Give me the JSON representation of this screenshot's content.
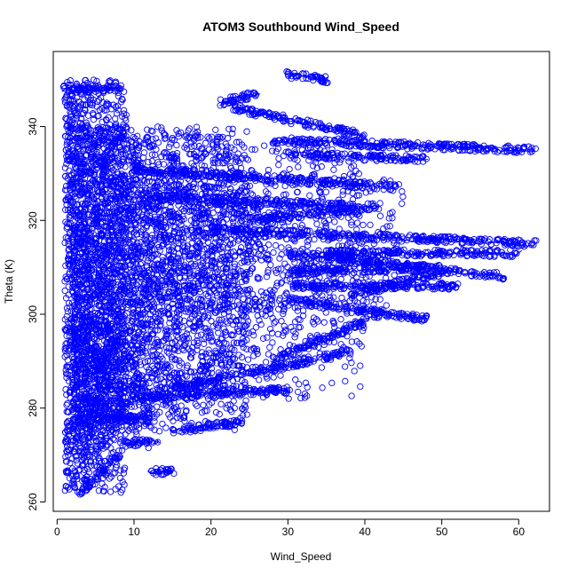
{
  "chart_data": {
    "type": "scatter",
    "title": "ATOM3 Southbound Wind_Speed",
    "xlabel": "Wind_Speed",
    "ylabel": "Theta (K)",
    "xlim": [
      -0.5,
      64
    ],
    "ylim": [
      258,
      356
    ],
    "xticks": [
      0,
      10,
      20,
      30,
      40,
      50,
      60
    ],
    "yticks": [
      260,
      280,
      300,
      320,
      340
    ],
    "marker": "open-circle",
    "series": [
      {
        "color": "#0000ff",
        "clusters": [
          {
            "x": [
              1,
              9
            ],
            "y": [
              262,
              350
            ],
            "n": 1500
          },
          {
            "x": [
              2,
              25
            ],
            "y": [
              275,
              340
            ],
            "n": 2200
          },
          {
            "x": [
              5,
              40
            ],
            "y": [
              282,
              338
            ],
            "n": 1400
          },
          {
            "x": [
              8,
              45
            ],
            "y": [
              300,
              330
            ],
            "n": 700
          },
          {
            "x": [
              2,
              12
            ],
            "y": [
              270,
              300
            ],
            "n": 300
          }
        ],
        "tracks": [
          {
            "x": [
              1,
              8
            ],
            "y": [
              348,
              348
            ]
          },
          {
            "x": [
              3,
              8
            ],
            "y": [
              262,
              270
            ]
          },
          {
            "x": [
              9,
              13
            ],
            "y": [
              272.5,
              273
            ]
          },
          {
            "x": [
              12,
              15
            ],
            "y": [
              266.5,
              266.5
            ]
          },
          {
            "x": [
              15,
              24
            ],
            "y": [
              275,
              277
            ]
          },
          {
            "x": [
              21,
              26
            ],
            "y": [
              345,
              347
            ]
          },
          {
            "x": [
              30,
              35
            ],
            "y": [
              351,
              350
            ]
          },
          {
            "x": [
              23,
              40
            ],
            "y": [
              344,
              338
            ]
          },
          {
            "x": [
              28,
              62
            ],
            "y": [
              337,
              335
            ]
          },
          {
            "x": [
              30,
              48
            ],
            "y": [
              334,
              333
            ]
          },
          {
            "x": [
              10,
              44
            ],
            "y": [
              331,
              327
            ]
          },
          {
            "x": [
              20,
              62
            ],
            "y": [
              318,
              315
            ]
          },
          {
            "x": [
              30,
              58
            ],
            "y": [
              313,
              308
            ]
          },
          {
            "x": [
              35,
              60
            ],
            "y": [
              313,
              313
            ]
          },
          {
            "x": [
              30,
              52
            ],
            "y": [
              306,
              306
            ]
          },
          {
            "x": [
              38,
              50
            ],
            "y": [
              304,
              309
            ]
          },
          {
            "x": [
              30,
              48
            ],
            "y": [
              303,
              299
            ]
          },
          {
            "x": [
              28,
              42
            ],
            "y": [
              290,
              300
            ]
          },
          {
            "x": [
              15,
              38
            ],
            "y": [
              284,
              292
            ]
          },
          {
            "x": [
              10,
              30
            ],
            "y": [
              282,
              284
            ]
          },
          {
            "x": [
              5,
              12
            ],
            "y": [
              278,
              278
            ]
          },
          {
            "x": [
              25,
              42
            ],
            "y": [
              320,
              323
            ]
          },
          {
            "x": [
              12,
              38
            ],
            "y": [
              325,
              323
            ]
          },
          {
            "x": [
              30,
              50
            ],
            "y": [
              309,
              310
            ]
          }
        ]
      }
    ]
  }
}
